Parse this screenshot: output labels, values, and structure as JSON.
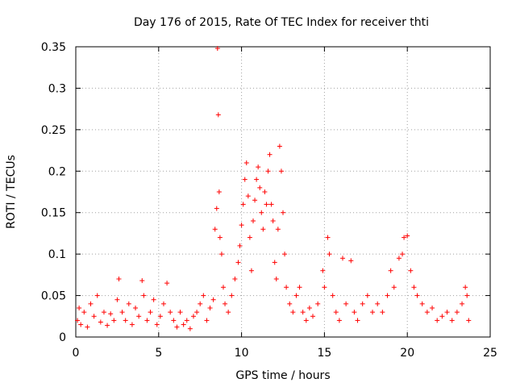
{
  "chart_data": {
    "type": "scatter",
    "title": "Day 176 of 2015, Rate Of TEC Index for receiver thti",
    "xlabel": "GPS time / hours",
    "ylabel": "ROTI / TECUs",
    "xlim": [
      0,
      25
    ],
    "ylim": [
      0,
      0.35
    ],
    "xticks": [
      0,
      5,
      10,
      15,
      20,
      25
    ],
    "yticks": [
      0,
      0.05,
      0.1,
      0.15,
      0.2,
      0.25,
      0.3,
      0.35
    ],
    "xtick_labels": [
      "0",
      "5",
      "10",
      "15",
      "20",
      "25"
    ],
    "ytick_labels": [
      "0",
      "0.05",
      "0.1",
      "0.15",
      "0.2",
      "0.25",
      "0.3",
      "0.35"
    ],
    "grid": true,
    "legend": "none",
    "marker": "plus",
    "color": "#ff0000",
    "series": [
      {
        "points": [
          [
            0.1,
            0.02
          ],
          [
            0.2,
            0.035
          ],
          [
            0.3,
            0.015
          ],
          [
            0.5,
            0.03
          ],
          [
            0.7,
            0.012
          ],
          [
            0.9,
            0.04
          ],
          [
            1.1,
            0.025
          ],
          [
            1.3,
            0.05
          ],
          [
            1.5,
            0.018
          ],
          [
            1.7,
            0.03
          ],
          [
            1.9,
            0.014
          ],
          [
            2.1,
            0.028
          ],
          [
            2.3,
            0.02
          ],
          [
            2.5,
            0.045
          ],
          [
            2.6,
            0.07
          ],
          [
            2.8,
            0.03
          ],
          [
            3.0,
            0.02
          ],
          [
            3.2,
            0.04
          ],
          [
            3.4,
            0.015
          ],
          [
            3.6,
            0.035
          ],
          [
            3.8,
            0.025
          ],
          [
            4.0,
            0.068
          ],
          [
            4.1,
            0.05
          ],
          [
            4.3,
            0.02
          ],
          [
            4.5,
            0.03
          ],
          [
            4.7,
            0.045
          ],
          [
            4.9,
            0.015
          ],
          [
            5.1,
            0.025
          ],
          [
            5.3,
            0.04
          ],
          [
            5.5,
            0.065
          ],
          [
            5.7,
            0.03
          ],
          [
            5.9,
            0.02
          ],
          [
            6.1,
            0.012
          ],
          [
            6.3,
            0.03
          ],
          [
            6.5,
            0.015
          ],
          [
            6.7,
            0.02
          ],
          [
            6.9,
            0.01
          ],
          [
            7.1,
            0.025
          ],
          [
            7.3,
            0.03
          ],
          [
            7.5,
            0.04
          ],
          [
            7.7,
            0.05
          ],
          [
            7.9,
            0.02
          ],
          [
            8.1,
            0.035
          ],
          [
            8.3,
            0.045
          ],
          [
            8.4,
            0.13
          ],
          [
            8.5,
            0.155
          ],
          [
            8.55,
            0.348
          ],
          [
            8.6,
            0.268
          ],
          [
            8.65,
            0.175
          ],
          [
            8.7,
            0.12
          ],
          [
            8.8,
            0.1
          ],
          [
            8.9,
            0.06
          ],
          [
            9.0,
            0.04
          ],
          [
            9.2,
            0.03
          ],
          [
            9.4,
            0.05
          ],
          [
            9.6,
            0.07
          ],
          [
            9.8,
            0.09
          ],
          [
            9.9,
            0.11
          ],
          [
            10.0,
            0.135
          ],
          [
            10.1,
            0.16
          ],
          [
            10.2,
            0.19
          ],
          [
            10.3,
            0.21
          ],
          [
            10.4,
            0.17
          ],
          [
            10.5,
            0.12
          ],
          [
            10.6,
            0.08
          ],
          [
            10.7,
            0.14
          ],
          [
            10.8,
            0.165
          ],
          [
            10.9,
            0.19
          ],
          [
            11.0,
            0.205
          ],
          [
            11.1,
            0.18
          ],
          [
            11.2,
            0.15
          ],
          [
            11.3,
            0.13
          ],
          [
            11.4,
            0.175
          ],
          [
            11.5,
            0.16
          ],
          [
            11.6,
            0.2
          ],
          [
            11.7,
            0.22
          ],
          [
            11.8,
            0.16
          ],
          [
            11.9,
            0.14
          ],
          [
            12.0,
            0.09
          ],
          [
            12.1,
            0.07
          ],
          [
            12.2,
            0.13
          ],
          [
            12.3,
            0.23
          ],
          [
            12.4,
            0.2
          ],
          [
            12.5,
            0.15
          ],
          [
            12.6,
            0.1
          ],
          [
            12.7,
            0.06
          ],
          [
            12.9,
            0.04
          ],
          [
            13.1,
            0.03
          ],
          [
            13.3,
            0.05
          ],
          [
            13.5,
            0.06
          ],
          [
            13.7,
            0.03
          ],
          [
            13.9,
            0.02
          ],
          [
            14.1,
            0.035
          ],
          [
            14.3,
            0.025
          ],
          [
            14.6,
            0.04
          ],
          [
            14.9,
            0.08
          ],
          [
            15.0,
            0.06
          ],
          [
            15.2,
            0.12
          ],
          [
            15.3,
            0.1
          ],
          [
            15.5,
            0.05
          ],
          [
            15.7,
            0.03
          ],
          [
            15.9,
            0.02
          ],
          [
            16.1,
            0.095
          ],
          [
            16.3,
            0.04
          ],
          [
            16.6,
            0.092
          ],
          [
            16.8,
            0.03
          ],
          [
            17.0,
            0.02
          ],
          [
            17.3,
            0.04
          ],
          [
            17.6,
            0.05
          ],
          [
            17.9,
            0.03
          ],
          [
            18.2,
            0.04
          ],
          [
            18.5,
            0.03
          ],
          [
            18.8,
            0.05
          ],
          [
            19.0,
            0.08
          ],
          [
            19.2,
            0.06
          ],
          [
            19.5,
            0.095
          ],
          [
            19.7,
            0.1
          ],
          [
            19.8,
            0.12
          ],
          [
            20.0,
            0.122
          ],
          [
            20.2,
            0.08
          ],
          [
            20.4,
            0.06
          ],
          [
            20.6,
            0.05
          ],
          [
            20.9,
            0.04
          ],
          [
            21.2,
            0.03
          ],
          [
            21.5,
            0.035
          ],
          [
            21.8,
            0.02
          ],
          [
            22.1,
            0.025
          ],
          [
            22.4,
            0.03
          ],
          [
            22.7,
            0.02
          ],
          [
            23.0,
            0.03
          ],
          [
            23.3,
            0.04
          ],
          [
            23.5,
            0.06
          ],
          [
            23.6,
            0.05
          ],
          [
            23.7,
            0.02
          ]
        ]
      }
    ]
  }
}
